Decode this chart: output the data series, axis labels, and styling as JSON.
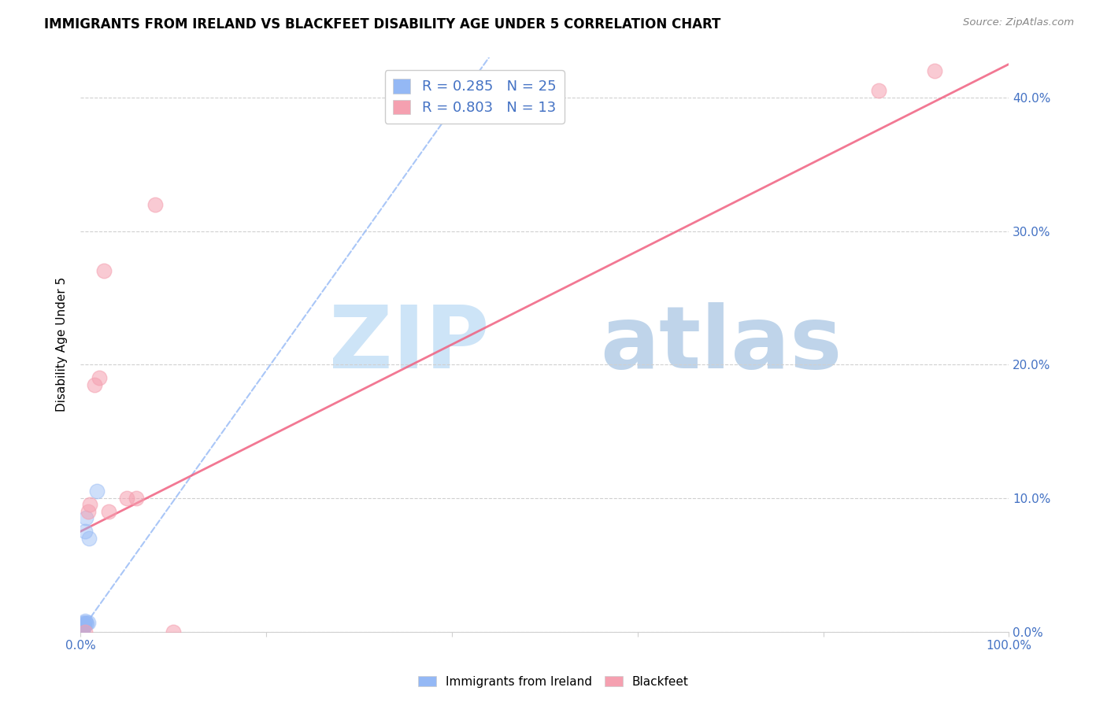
{
  "title": "IMMIGRANTS FROM IRELAND VS BLACKFEET DISABILITY AGE UNDER 5 CORRELATION CHART",
  "source": "Source: ZipAtlas.com",
  "ylabel": "Disability Age Under 5",
  "xmin": 0.0,
  "xmax": 1.0,
  "ymin": 0.0,
  "ymax": 0.43,
  "ireland_R": 0.285,
  "ireland_N": 25,
  "blackfeet_R": 0.803,
  "blackfeet_N": 13,
  "ireland_color": "#94b8f5",
  "blackfeet_color": "#f5a0b0",
  "ireland_line_color": "#94b8f5",
  "blackfeet_line_color": "#f06080",
  "ytick_values": [
    0.0,
    0.1,
    0.2,
    0.3,
    0.4
  ],
  "xtick_values": [
    0.0,
    0.2,
    0.4,
    0.6,
    0.8,
    1.0
  ],
  "ireland_x": [
    0.001,
    0.001,
    0.001,
    0.001,
    0.001,
    0.001,
    0.002,
    0.002,
    0.002,
    0.002,
    0.002,
    0.003,
    0.003,
    0.003,
    0.003,
    0.004,
    0.004,
    0.005,
    0.005,
    0.006,
    0.006,
    0.007,
    0.008,
    0.009,
    0.018
  ],
  "ireland_y": [
    0.0,
    0.0,
    0.0,
    0.0,
    0.001,
    0.002,
    0.001,
    0.001,
    0.002,
    0.003,
    0.004,
    0.003,
    0.004,
    0.005,
    0.006,
    0.005,
    0.007,
    0.008,
    0.075,
    0.006,
    0.085,
    0.006,
    0.007,
    0.07,
    0.105
  ],
  "blackfeet_x": [
    0.005,
    0.008,
    0.01,
    0.015,
    0.02,
    0.025,
    0.03,
    0.05,
    0.06,
    0.08,
    0.1,
    0.86,
    0.92
  ],
  "blackfeet_y": [
    0.0,
    0.09,
    0.095,
    0.185,
    0.19,
    0.27,
    0.09,
    0.1,
    0.1,
    0.32,
    0.0,
    0.405,
    0.42
  ],
  "ireland_line_x0": 0.0,
  "ireland_line_x1": 0.44,
  "ireland_line_y0": 0.0,
  "ireland_line_y1": 0.43,
  "blackfeet_line_x0": 0.0,
  "blackfeet_line_x1": 1.0,
  "blackfeet_line_y0": 0.075,
  "blackfeet_line_y1": 0.425
}
